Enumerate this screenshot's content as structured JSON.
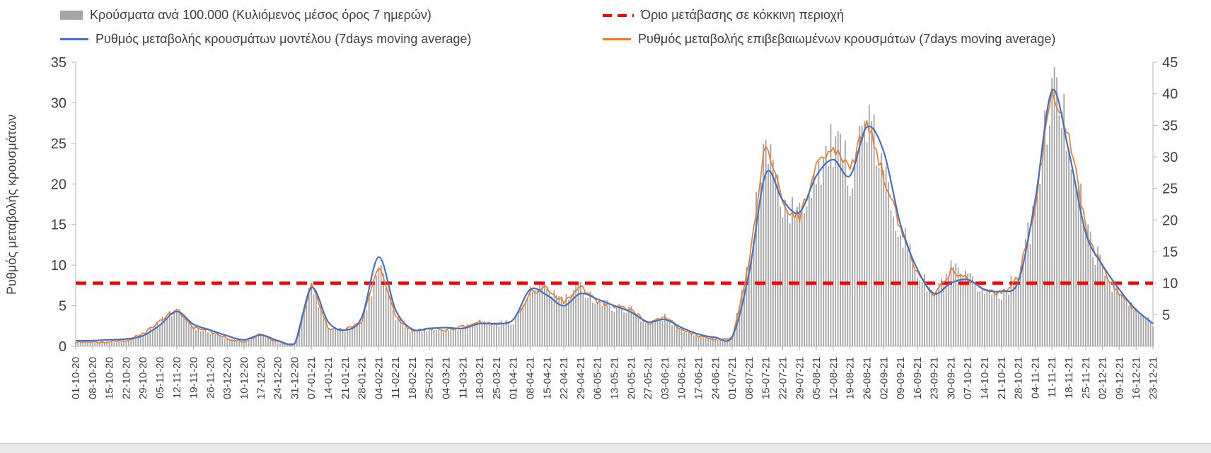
{
  "legend": {
    "bars": "Κρούσματα ανά 100.000 (Κυλιόμενος μέσος όρος 7 ημερών)",
    "threshold": "Όριο μετάβασης σε κόκκινη περιοχή",
    "model": "Ρυθμός μεταβολής κρουσμάτων μοντέλου (7days moving average)",
    "confirmed": "Ρυθμός μεταβολής επιβεβαιωμένων κρουσμάτων (7days moving average)"
  },
  "colors": {
    "bars": "#a6a6a6",
    "threshold": "#ff0000",
    "model": "#4472c4",
    "confirmed": "#ed7d31",
    "axis": "#b7b7b7",
    "text": "#404040"
  },
  "chart_data": {
    "type": "combo",
    "title": "",
    "ylabel_left": "Ρυθμός μεταβολής κρουσμάτων",
    "left_axis": {
      "min": 0,
      "max": 35,
      "ticks": [
        0,
        5,
        10,
        15,
        20,
        25,
        30,
        35
      ]
    },
    "right_axis": {
      "min": 0,
      "max": 45,
      "ticks": [
        5,
        10,
        15,
        20,
        25,
        30,
        35,
        40,
        45
      ]
    },
    "threshold_right_value": 10,
    "grid": false,
    "legend_position": "top",
    "categories": [
      "01-10-20",
      "08-10-20",
      "15-10-20",
      "22-10-20",
      "29-10-20",
      "05-11-20",
      "12-11-20",
      "19-11-20",
      "26-11-20",
      "03-12-20",
      "10-12-20",
      "17-12-20",
      "24-12-20",
      "31-12-20",
      "07-01-21",
      "14-01-21",
      "21-01-21",
      "28-01-21",
      "04-02-21",
      "11-02-21",
      "18-02-21",
      "25-02-21",
      "04-03-21",
      "11-03-21",
      "18-03-21",
      "25-03-21",
      "01-04-21",
      "08-04-21",
      "15-04-21",
      "22-04-21",
      "29-04-21",
      "06-05-21",
      "13-05-21",
      "20-05-21",
      "27-05-21",
      "03-06-21",
      "10-06-21",
      "17-06-21",
      "24-06-21",
      "01-07-21",
      "08-07-21",
      "15-07-21",
      "22-07-21",
      "29-07-21",
      "05-08-21",
      "12-08-21",
      "19-08-21",
      "26-08-21",
      "02-09-21",
      "09-09-21",
      "16-09-21",
      "23-09-21",
      "30-09-21",
      "07-10-21",
      "14-10-21",
      "21-10-21",
      "28-10-21",
      "04-11-21",
      "11-11-21",
      "18-11-21",
      "25-11-21",
      "02-12-21",
      "09-12-21",
      "16-12-21",
      "23-12-21"
    ],
    "series": [
      {
        "name": "model",
        "label": "Ρυθμός μεταβολής κρουσμάτων μοντέλου (7days moving average)",
        "type": "line",
        "axis": "left",
        "values": [
          0.7,
          0.7,
          0.8,
          0.9,
          1.3,
          2.6,
          4.3,
          2.7,
          2.0,
          1.3,
          0.8,
          1.4,
          0.7,
          0.3,
          7.2,
          3.0,
          2.0,
          3.6,
          11.0,
          4.5,
          2.1,
          2.2,
          2.3,
          2.2,
          2.8,
          2.8,
          3.3,
          7.0,
          6.3,
          5.0,
          6.5,
          5.8,
          5.0,
          4.2,
          3.0,
          3.3,
          2.3,
          1.5,
          1.1,
          1.2,
          9.0,
          21.3,
          18.0,
          16.5,
          21.0,
          23.0,
          21.0,
          27.0,
          24.0,
          15.0,
          9.5,
          6.5,
          7.8,
          8.2,
          7.0,
          6.8,
          8.0,
          18.0,
          31.5,
          24.0,
          14.0,
          10.0,
          7.0,
          4.5,
          2.8
        ]
      },
      {
        "name": "confirmed",
        "label": "Ρυθμός μεταβολής επιβεβαιωμένων κρουσμάτων (7days moving average)",
        "type": "line",
        "axis": "left",
        "values": [
          0.5,
          0.5,
          0.5,
          0.7,
          1.5,
          3.0,
          4.6,
          2.3,
          1.8,
          0.9,
          0.6,
          1.5,
          0.5,
          0.2,
          7.7,
          2.3,
          2.0,
          3.0,
          10.0,
          3.6,
          1.8,
          2.2,
          2.0,
          2.5,
          3.0,
          2.7,
          3.1,
          6.6,
          7.2,
          5.5,
          7.3,
          5.5,
          4.8,
          4.5,
          2.8,
          3.6,
          2.1,
          1.3,
          0.9,
          1.0,
          10.0,
          25.5,
          17.5,
          16.0,
          22.0,
          24.5,
          21.5,
          28.2,
          21.0,
          14.5,
          9.0,
          6.3,
          9.3,
          8.2,
          6.8,
          6.5,
          8.5,
          17.0,
          32.3,
          26.0,
          14.5,
          9.5,
          6.5,
          4.3,
          null
        ]
      },
      {
        "name": "cases_per_100k",
        "label": "Κρούσματα ανά 100.000 (Κυλιόμενος μέσος όρος 7 ημερών)",
        "type": "bar",
        "axis": "right",
        "values": [
          0.6,
          0.6,
          0.6,
          0.9,
          1.9,
          3.9,
          5.9,
          3.0,
          2.3,
          1.2,
          0.8,
          1.9,
          0.6,
          0.3,
          9.9,
          3.0,
          2.6,
          3.9,
          12.9,
          4.6,
          2.3,
          2.8,
          2.6,
          3.2,
          3.9,
          3.5,
          4.0,
          8.5,
          9.3,
          7.1,
          9.4,
          7.1,
          6.2,
          5.8,
          3.6,
          4.6,
          2.7,
          1.7,
          1.2,
          1.3,
          12.9,
          32.8,
          22.5,
          20.6,
          28.3,
          31.5,
          27.6,
          36.3,
          27.0,
          18.6,
          11.6,
          8.1,
          12.0,
          10.5,
          8.7,
          8.4,
          10.9,
          21.9,
          41.5,
          33.4,
          18.6,
          12.2,
          8.4,
          5.5,
          3.6
        ]
      }
    ]
  }
}
